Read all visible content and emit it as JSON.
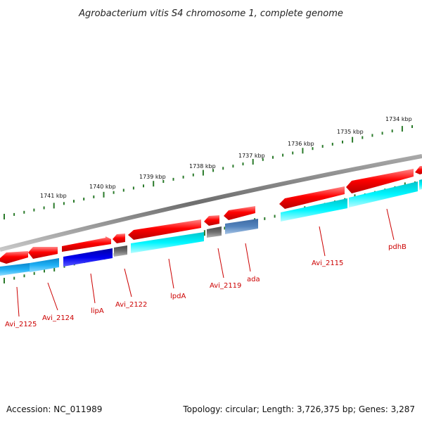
{
  "title": "Agrobacterium vitis S4 chromosome 1, complete genome",
  "footer": {
    "accession": "Accession: NC_011989",
    "summary": "Topology: circular; Length: 3,726,375 bp; Genes: 3,287"
  },
  "scale_labels": [
    "1741 kbp",
    "1740 kbp",
    "1739 kbp",
    "1738 kbp",
    "1737 kbp",
    "1736 kbp",
    "1735 kbp",
    "1734 kbp"
  ],
  "gene_labels": [
    "Avi_2125",
    "Avi_2124",
    "lipA",
    "Avi_2122",
    "lpdA",
    "Avi_2119",
    "ada",
    "Avi_2115",
    "pdhB"
  ],
  "colors": {
    "backbone": "#808080",
    "scale_ticks": "#2a7a2a",
    "cds_forward": "#ff0000",
    "cds_cyan": "#00e5f5",
    "cds_lightblue": "#1aa7ee",
    "cds_blue": "#0000ee",
    "cds_gray": "#707070",
    "cds_steelblue": "#4f7fb8",
    "label_text": "#cc0000"
  }
}
